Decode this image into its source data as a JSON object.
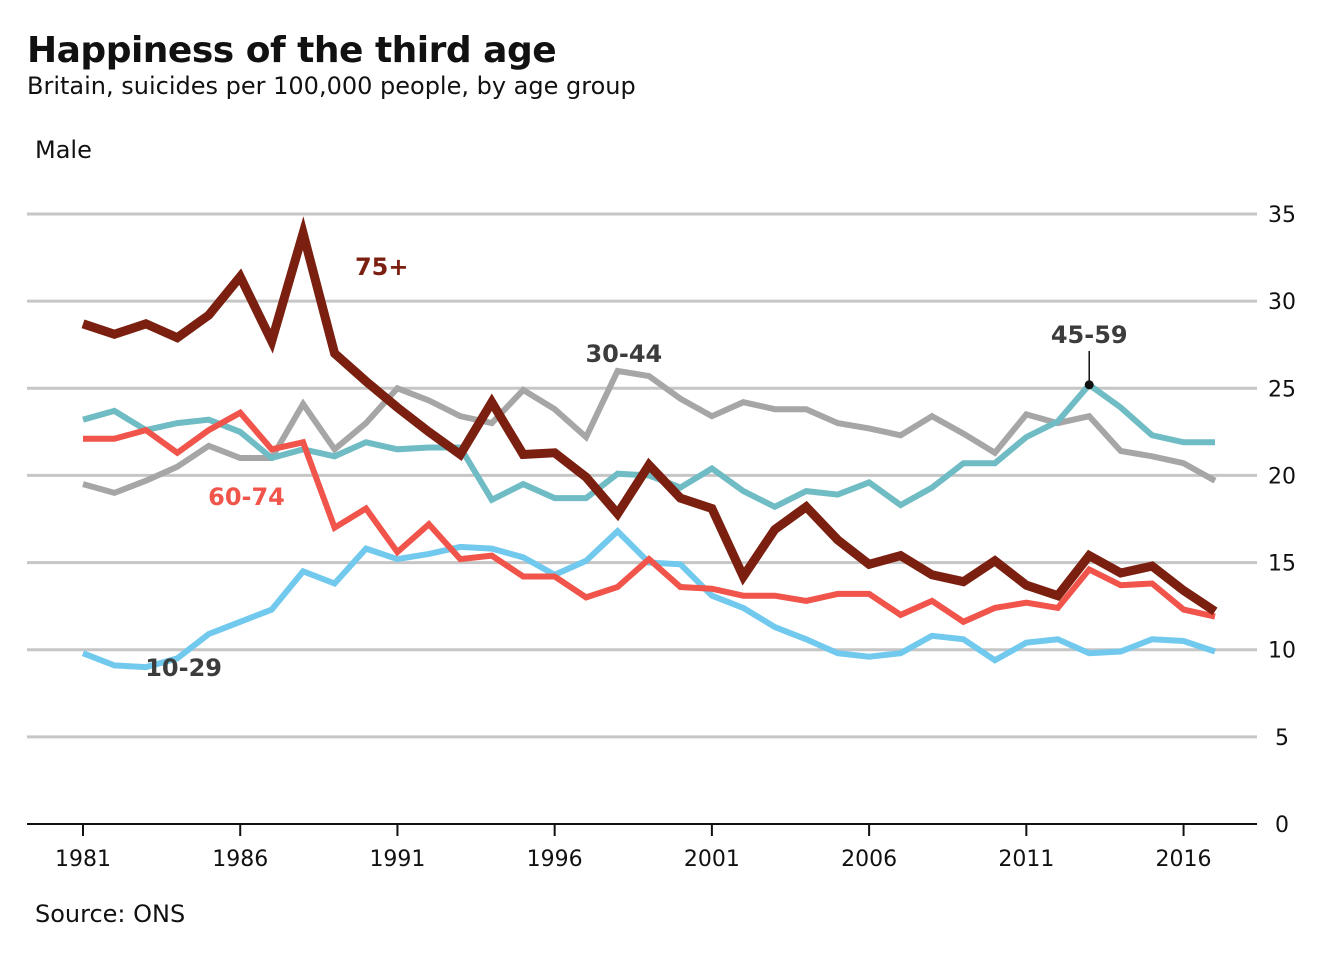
{
  "header": {
    "title": "Happiness of the third age",
    "subtitle": "Britain, suicides per 100,000 people, by age group",
    "panel": "Male",
    "source": "Source: ONS"
  },
  "chart_data": {
    "type": "line",
    "title": "Happiness of the third age",
    "subtitle": "Britain, suicides per 100,000 people, by age group",
    "panel": "Male",
    "xlabel": "",
    "ylabel": "",
    "xlim": [
      1981,
      2017
    ],
    "ylim": [
      0,
      35
    ],
    "x_ticks": [
      1981,
      1986,
      1991,
      1996,
      2001,
      2006,
      2011,
      2016
    ],
    "y_ticks": [
      0,
      5,
      10,
      15,
      20,
      25,
      30,
      35
    ],
    "y_axis_side": "right",
    "grid": "horizontal",
    "x": [
      1981,
      1982,
      1983,
      1984,
      1985,
      1986,
      1987,
      1988,
      1989,
      1990,
      1991,
      1992,
      1993,
      1994,
      1995,
      1996,
      1997,
      1998,
      1999,
      2000,
      2001,
      2002,
      2003,
      2004,
      2005,
      2006,
      2007,
      2008,
      2009,
      2010,
      2011,
      2012,
      2013,
      2014,
      2015,
      2016,
      2017
    ],
    "series": [
      {
        "name": "30-44",
        "color": "#a6a6a6",
        "values": [
          19.5,
          19.0,
          19.7,
          20.5,
          21.7,
          21.0,
          21.0,
          24.1,
          21.5,
          23.0,
          25.0,
          24.3,
          23.4,
          23.0,
          24.9,
          23.8,
          22.2,
          26.0,
          25.7,
          24.4,
          23.4,
          24.2,
          23.8,
          23.8,
          23.0,
          22.7,
          22.3,
          23.4,
          22.4,
          21.3,
          23.5,
          23.0,
          23.4,
          21.4,
          21.1,
          20.7,
          19.7
        ]
      },
      {
        "name": "45-59",
        "color": "#6fbcc4",
        "values": [
          23.2,
          23.7,
          22.6,
          23.0,
          23.2,
          22.5,
          21.0,
          21.5,
          21.1,
          21.9,
          21.5,
          21.6,
          21.6,
          18.6,
          19.5,
          18.7,
          18.7,
          20.1,
          20.0,
          19.3,
          20.4,
          19.1,
          18.2,
          19.1,
          18.9,
          19.6,
          18.3,
          19.3,
          20.7,
          20.7,
          22.2,
          23.1,
          25.2,
          23.9,
          22.3,
          21.9,
          21.9
        ]
      },
      {
        "name": "10-29",
        "color": "#72c9ee",
        "values": [
          9.8,
          9.1,
          9.0,
          9.5,
          10.9,
          11.6,
          12.3,
          14.5,
          13.8,
          15.8,
          15.2,
          15.5,
          15.9,
          15.8,
          15.3,
          14.3,
          15.1,
          16.8,
          15.0,
          14.9,
          13.1,
          12.4,
          11.3,
          10.6,
          9.8,
          9.6,
          9.8,
          10.8,
          10.6,
          9.4,
          10.4,
          10.6,
          9.8,
          9.9,
          10.6,
          10.5,
          9.9
        ]
      },
      {
        "name": "60-74",
        "color": "#f0544a",
        "values": [
          22.1,
          22.1,
          22.6,
          21.3,
          22.6,
          23.6,
          21.5,
          21.9,
          17.0,
          18.1,
          15.6,
          17.2,
          15.2,
          15.4,
          14.2,
          14.2,
          13.0,
          13.6,
          15.2,
          13.6,
          13.5,
          13.1,
          13.1,
          12.8,
          13.2,
          13.2,
          12.0,
          12.8,
          11.6,
          12.4,
          12.7,
          12.4,
          14.6,
          13.7,
          13.8,
          12.3,
          11.9
        ]
      },
      {
        "name": "75+",
        "color": "#7b2010",
        "values": [
          28.7,
          28.1,
          28.7,
          27.9,
          29.2,
          31.4,
          27.7,
          33.9,
          27.0,
          25.4,
          23.9,
          22.5,
          21.2,
          24.2,
          21.2,
          21.3,
          19.9,
          17.8,
          20.6,
          18.7,
          18.1,
          14.2,
          16.9,
          18.2,
          16.3,
          14.9,
          15.4,
          14.3,
          13.9,
          15.1,
          13.7,
          13.1,
          15.4,
          14.4,
          14.8,
          13.4,
          12.2
        ]
      }
    ],
    "annotations": [
      {
        "text": "75+",
        "series": "75+",
        "x": 1990.5,
        "y": 31.5
      },
      {
        "text": "30-44",
        "series": "30-44",
        "x": 1998.2,
        "y": 26.5
      },
      {
        "text": "45-59",
        "series": "45-59",
        "x": 2013,
        "y": 27.6,
        "pointer": {
          "x": 2013,
          "y": 25.2
        }
      },
      {
        "text": "60-74",
        "series": "60-74",
        "x": 1986.2,
        "y": 18.3
      },
      {
        "text": "10-29",
        "series": "10-29",
        "x": 1984.2,
        "y": 8.5
      }
    ]
  }
}
